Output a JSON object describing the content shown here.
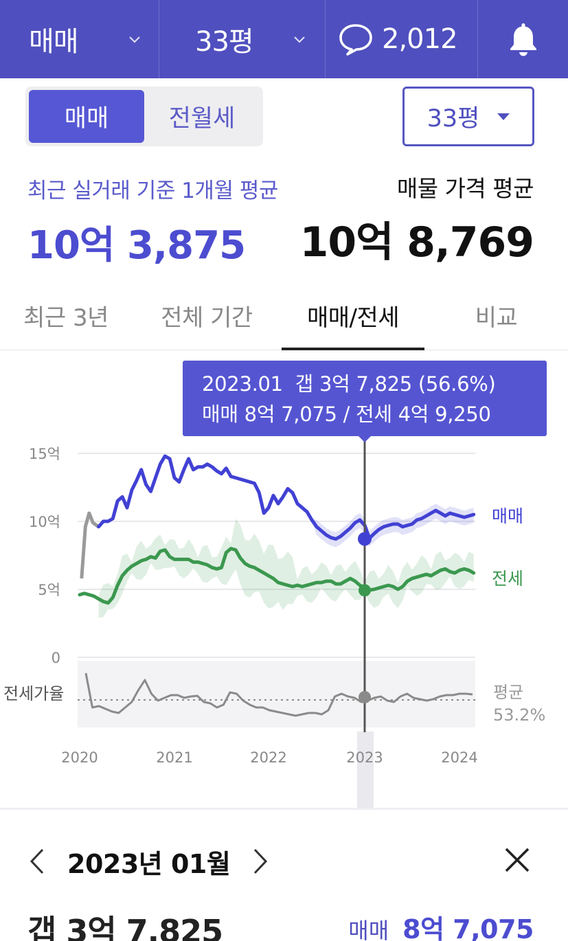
{
  "topbar": {
    "type_label": "매매",
    "size_label": "33평",
    "comment_count": "2,012",
    "icons": [
      "chevron-down-icon",
      "speech-bubble-icon",
      "bell-icon"
    ]
  },
  "segment": {
    "options": [
      {
        "label": "매매",
        "active": true
      },
      {
        "label": "전월세",
        "active": false
      }
    ]
  },
  "size_select": {
    "value": "33평"
  },
  "summary": {
    "recent_label": "최근 실거래 기준 1개월 평균",
    "recent_value": "10억 3,875",
    "listing_label": "매물 가격 평균",
    "listing_value": "10억 8,769"
  },
  "tabs": [
    {
      "label": "최근 3년",
      "active": false
    },
    {
      "label": "전체 기간",
      "active": false
    },
    {
      "label": "매매/전세",
      "active": true
    },
    {
      "label": "비교",
      "active": false
    }
  ],
  "tooltip": {
    "line1": "2023.01  갭 3억 7,825 (56.6%)",
    "line2": "매매 8억 7,075 / 전세 4억 9,250"
  },
  "chart_data": {
    "type": "line",
    "y_tick_labels": [
      "15억",
      "10억",
      "5억",
      "0"
    ],
    "ylim": [
      0,
      15
    ],
    "x_tick_labels": [
      "2020",
      "2021",
      "2022",
      "2023",
      "2024"
    ],
    "xlim": [
      2020.0,
      2024.2
    ],
    "series": [
      {
        "name": "매매",
        "color": "#4444d6",
        "x": [
          2020.02,
          2020.06,
          2020.1,
          2020.14,
          2020.2,
          2020.25,
          2020.3,
          2020.35,
          2020.4,
          2020.45,
          2020.5,
          2020.55,
          2020.6,
          2020.65,
          2020.7,
          2020.75,
          2020.8,
          2020.85,
          2020.9,
          2020.95,
          2021.0,
          2021.05,
          2021.1,
          2021.15,
          2021.2,
          2021.25,
          2021.3,
          2021.35,
          2021.4,
          2021.45,
          2021.5,
          2021.55,
          2021.6,
          2021.65,
          2021.7,
          2021.75,
          2021.8,
          2021.85,
          2021.9,
          2021.95,
          2022.0,
          2022.05,
          2022.1,
          2022.15,
          2022.2,
          2022.25,
          2022.3,
          2022.35,
          2022.4,
          2022.45,
          2022.5,
          2022.55,
          2022.6,
          2022.65,
          2022.7,
          2022.75,
          2022.8,
          2022.85,
          2022.9,
          2022.95,
          2023.0,
          2023.05,
          2023.1,
          2023.15,
          2023.2,
          2023.25,
          2023.3,
          2023.35,
          2023.4,
          2023.45,
          2023.5,
          2023.55,
          2023.6,
          2023.65,
          2023.7,
          2023.75,
          2023.8,
          2023.85,
          2023.9,
          2023.95,
          2024.0,
          2024.05,
          2024.1,
          2024.15
        ],
        "values": [
          5.8,
          9.6,
          10.6,
          9.9,
          9.6,
          10.0,
          10.0,
          10.2,
          11.5,
          11.8,
          11.0,
          12.3,
          13.0,
          13.8,
          12.7,
          12.2,
          13.2,
          14.2,
          14.8,
          14.6,
          13.2,
          12.9,
          13.8,
          14.6,
          13.8,
          14.0,
          14.0,
          14.2,
          14.0,
          13.7,
          13.5,
          13.9,
          13.3,
          13.2,
          13.1,
          13.0,
          12.9,
          12.8,
          12.1,
          10.6,
          11.0,
          11.9,
          11.3,
          11.8,
          12.4,
          12.1,
          11.3,
          11.0,
          10.7,
          10.1,
          9.6,
          9.3,
          9.0,
          8.8,
          8.7,
          8.9,
          9.2,
          9.5,
          9.9,
          10.1,
          9.7,
          8.75,
          9.1,
          9.4,
          9.6,
          9.7,
          9.8,
          9.8,
          9.6,
          9.7,
          9.8,
          10.1,
          10.2,
          10.4,
          10.6,
          10.8,
          10.6,
          10.4,
          10.6,
          10.5,
          10.4,
          10.3,
          10.4,
          10.5
        ]
      },
      {
        "name": "전세",
        "color": "#3d9a52",
        "x": [
          2020.0,
          2020.05,
          2020.1,
          2020.15,
          2020.2,
          2020.25,
          2020.3,
          2020.35,
          2020.4,
          2020.45,
          2020.5,
          2020.55,
          2020.6,
          2020.65,
          2020.7,
          2020.75,
          2020.8,
          2020.85,
          2020.9,
          2020.95,
          2021.0,
          2021.05,
          2021.1,
          2021.15,
          2021.2,
          2021.25,
          2021.3,
          2021.35,
          2021.4,
          2021.45,
          2021.5,
          2021.55,
          2021.6,
          2021.65,
          2021.7,
          2021.75,
          2021.8,
          2021.85,
          2021.9,
          2021.95,
          2022.0,
          2022.05,
          2022.1,
          2022.15,
          2022.2,
          2022.25,
          2022.3,
          2022.35,
          2022.4,
          2022.45,
          2022.5,
          2022.55,
          2022.6,
          2022.65,
          2022.7,
          2022.75,
          2022.8,
          2022.85,
          2022.9,
          2022.95,
          2023.0,
          2023.05,
          2023.1,
          2023.15,
          2023.2,
          2023.25,
          2023.3,
          2023.35,
          2023.4,
          2023.45,
          2023.5,
          2023.55,
          2023.6,
          2023.65,
          2023.7,
          2023.75,
          2023.8,
          2023.85,
          2023.9,
          2023.95,
          2024.0,
          2024.05,
          2024.1,
          2024.15
        ],
        "values": [
          4.6,
          4.7,
          4.6,
          4.5,
          4.3,
          4.1,
          4.0,
          4.4,
          5.3,
          6.0,
          6.4,
          6.7,
          6.9,
          7.1,
          7.2,
          7.4,
          7.3,
          7.8,
          7.9,
          7.4,
          7.2,
          7.2,
          7.2,
          7.2,
          7.0,
          7.0,
          6.9,
          6.8,
          6.6,
          6.5,
          6.6,
          7.7,
          8.0,
          7.9,
          7.3,
          6.9,
          6.7,
          6.6,
          6.4,
          6.2,
          6.0,
          5.8,
          5.5,
          5.4,
          5.3,
          5.2,
          5.3,
          5.2,
          5.3,
          5.4,
          5.5,
          5.5,
          5.6,
          5.6,
          5.4,
          5.4,
          5.6,
          5.8,
          5.6,
          5.3,
          5.1,
          4.95,
          5.0,
          5.1,
          5.2,
          5.3,
          5.2,
          5.0,
          5.2,
          5.6,
          5.8,
          5.9,
          6.0,
          6.1,
          6.0,
          6.2,
          6.4,
          6.5,
          6.3,
          6.2,
          6.4,
          6.5,
          6.4,
          6.2
        ]
      }
    ],
    "series_labels": [
      "매매",
      "전세"
    ],
    "ratio": {
      "label": "전세가율",
      "avg_label": "평균",
      "avg_value": "53.2%",
      "note": "sub-chart of jeonse ratio around average line"
    },
    "highlight": {
      "x": 2023.0,
      "sale": 8.7075,
      "jeonse": 4.925
    },
    "grid": true
  },
  "detail": {
    "month": "2023년 01월",
    "gap": "갭 3억 7,825",
    "trade_label": "매매",
    "trade_value": "8억 7,075"
  }
}
